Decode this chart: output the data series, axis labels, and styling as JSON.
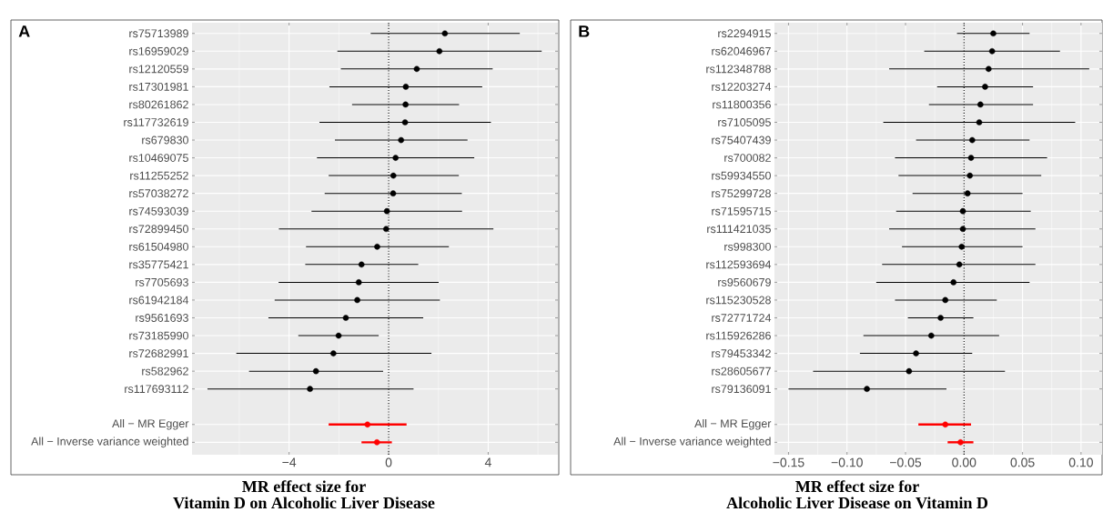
{
  "chart_data": [
    {
      "type": "scatter",
      "orientation": "horizontal",
      "title": "A",
      "xlabel": "MR effect size for Vitamin D on Alcoholic Liver Disease",
      "marker": "circle",
      "grid": true,
      "categories": [
        "rs75713989",
        "rs16959029",
        "rs12120559",
        "rs17301981",
        "rs80261862",
        "rs117732619",
        "rs679830",
        "rs10469075",
        "rs11255252",
        "rs57038272",
        "rs74593039",
        "rs72899450",
        "rs61504980",
        "rs35775421",
        "rs7705693",
        "rs61942184",
        "rs9561693",
        "rs73185990",
        "rs72682991",
        "rs582962",
        "rs117693112",
        null,
        "All − MR Egger",
        "All − Inverse variance weighted"
      ],
      "xlim": [
        -7.9,
        6.8
      ],
      "xticks": [
        {
          "value": -4,
          "label": "−4"
        },
        0,
        4
      ],
      "ref_lines": [
        {
          "axis": "x",
          "value": 0,
          "line_style": "dotted",
          "color": "#000000"
        }
      ],
      "series": [
        {
          "color": "#000000",
          "values": [
            2.26,
            2.04,
            1.13,
            0.69,
            0.68,
            0.66,
            0.5,
            0.28,
            0.19,
            0.18,
            -0.07,
            -0.1,
            -0.46,
            -1.09,
            -1.2,
            -1.26,
            -1.72,
            -2.01,
            -2.22,
            -2.92,
            -3.16,
            null,
            null,
            null
          ],
          "errors": [
            [
              -0.72,
              5.27
            ],
            [
              -2.06,
              6.15
            ],
            [
              -1.92,
              4.18
            ],
            [
              -2.38,
              3.76
            ],
            [
              -1.47,
              2.83
            ],
            [
              -2.78,
              4.11
            ],
            [
              -2.16,
              3.17
            ],
            [
              -2.88,
              3.44
            ],
            [
              -2.41,
              2.82
            ],
            [
              -2.57,
              2.94
            ],
            [
              -3.1,
              2.95
            ],
            [
              -4.41,
              4.21
            ],
            [
              -3.32,
              2.42
            ],
            [
              -3.35,
              1.19
            ],
            [
              -4.42,
              2.01
            ],
            [
              -4.58,
              2.06
            ],
            [
              -4.83,
              1.39
            ],
            [
              -3.63,
              -0.4
            ],
            [
              -6.12,
              1.72
            ],
            [
              -5.61,
              -0.22
            ],
            [
              -7.28,
              1.0
            ],
            null,
            null,
            null
          ]
        },
        {
          "color": "#ff0000",
          "values": [
            null,
            null,
            null,
            null,
            null,
            null,
            null,
            null,
            null,
            null,
            null,
            null,
            null,
            null,
            null,
            null,
            null,
            null,
            null,
            null,
            null,
            null,
            -0.85,
            -0.47
          ],
          "errors": [
            null,
            null,
            null,
            null,
            null,
            null,
            null,
            null,
            null,
            null,
            null,
            null,
            null,
            null,
            null,
            null,
            null,
            null,
            null,
            null,
            null,
            null,
            [
              -2.41,
              0.72
            ],
            [
              -1.09,
              0.13
            ]
          ]
        }
      ]
    },
    {
      "type": "scatter",
      "orientation": "horizontal",
      "title": "B",
      "xlabel": "MR effect size for Alcoholic Liver Disease on Vitamin D",
      "marker": "circle",
      "grid": true,
      "categories": [
        "rs2294915",
        "rs62046967",
        "rs112348788",
        "rs12203274",
        "rs11800356",
        "rs7105095",
        "rs75407439",
        "rs700082",
        "rs59934550",
        "rs75299728",
        "rs71595715",
        "rs111421035",
        "rs998300",
        "rs112593694",
        "rs9560679",
        "rs115230528",
        "rs72771724",
        "rs115926286",
        "rs79453342",
        "rs28605677",
        "rs79136091",
        null,
        "All − MR Egger",
        "All − Inverse variance weighted"
      ],
      "xlim": [
        -0.162,
        0.118
      ],
      "xticks": [
        {
          "value": -0.15,
          "label": "−0.15"
        },
        {
          "value": -0.1,
          "label": "−0.10"
        },
        {
          "value": -0.05,
          "label": "−0.05"
        },
        {
          "value": 0,
          "label": "0.00"
        },
        0.05,
        {
          "value": 0.1,
          "label": "0.10"
        }
      ],
      "ref_lines": [
        {
          "axis": "x",
          "value": 0,
          "line_style": "dotted",
          "color": "#000000"
        }
      ],
      "series": [
        {
          "color": "#000000",
          "values": [
            0.025,
            0.024,
            0.021,
            0.018,
            0.014,
            0.013,
            0.007,
            0.006,
            0.005,
            0.003,
            -0.001,
            -0.001,
            -0.002,
            -0.004,
            -0.009,
            -0.016,
            -0.02,
            -0.028,
            -0.041,
            -0.047,
            -0.083,
            null,
            null,
            null
          ],
          "errors": [
            [
              -0.006,
              0.056
            ],
            [
              -0.034,
              0.082
            ],
            [
              -0.064,
              0.107
            ],
            [
              -0.023,
              0.059
            ],
            [
              -0.03,
              0.059
            ],
            [
              -0.069,
              0.095
            ],
            [
              -0.041,
              0.056
            ],
            [
              -0.059,
              0.071
            ],
            [
              -0.056,
              0.066
            ],
            [
              -0.044,
              0.05
            ],
            [
              -0.058,
              0.057
            ],
            [
              -0.064,
              0.061
            ],
            [
              -0.053,
              0.05
            ],
            [
              -0.07,
              0.061
            ],
            [
              -0.075,
              0.056
            ],
            [
              -0.059,
              0.028
            ],
            [
              -0.048,
              0.008
            ],
            [
              -0.086,
              0.03
            ],
            [
              -0.089,
              0.007
            ],
            [
              -0.129,
              0.035
            ],
            [
              -0.15,
              -0.015
            ],
            null,
            null,
            null
          ]
        },
        {
          "color": "#ff0000",
          "values": [
            null,
            null,
            null,
            null,
            null,
            null,
            null,
            null,
            null,
            null,
            null,
            null,
            null,
            null,
            null,
            null,
            null,
            null,
            null,
            null,
            null,
            null,
            -0.016,
            -0.003
          ],
          "errors": [
            null,
            null,
            null,
            null,
            null,
            null,
            null,
            null,
            null,
            null,
            null,
            null,
            null,
            null,
            null,
            null,
            null,
            null,
            null,
            null,
            null,
            null,
            [
              -0.039,
              0.006
            ],
            [
              -0.014,
              0.008
            ]
          ]
        }
      ]
    }
  ]
}
